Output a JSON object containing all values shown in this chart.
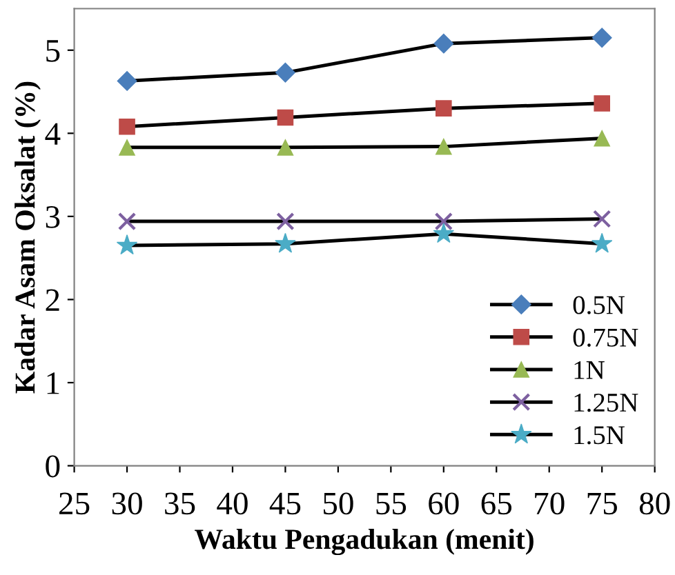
{
  "chart_data": {
    "type": "line",
    "xlabel": "Waktu Pengadukan (menit)",
    "ylabel": "Kadar Asam Oksalat (%)",
    "x": [
      30,
      45,
      60,
      75
    ],
    "xlim": [
      25,
      80
    ],
    "xticks": [
      25,
      30,
      35,
      40,
      45,
      50,
      55,
      60,
      65,
      70,
      75,
      80
    ],
    "ylim": [
      0,
      5.5
    ],
    "yticks": [
      0,
      1,
      2,
      3,
      4,
      5
    ],
    "grid": false,
    "legend": "bottom right",
    "series": [
      {
        "name": "0.5N",
        "color": "#4a7ebb",
        "marker": "diamond",
        "values": [
          4.63,
          4.73,
          5.08,
          5.15
        ]
      },
      {
        "name": "0.75N",
        "color": "#be4b48",
        "marker": "square",
        "values": [
          4.08,
          4.19,
          4.3,
          4.36
        ]
      },
      {
        "name": "1N",
        "color": "#98b954",
        "marker": "triangle",
        "values": [
          3.83,
          3.83,
          3.84,
          3.94
        ]
      },
      {
        "name": "1.25N",
        "color": "#7d60a0",
        "marker": "cross",
        "values": [
          2.94,
          2.94,
          2.94,
          2.97
        ]
      },
      {
        "name": "1.5N",
        "color": "#4bacc6",
        "marker": "star",
        "values": [
          2.65,
          2.67,
          2.79,
          2.67
        ]
      }
    ]
  }
}
